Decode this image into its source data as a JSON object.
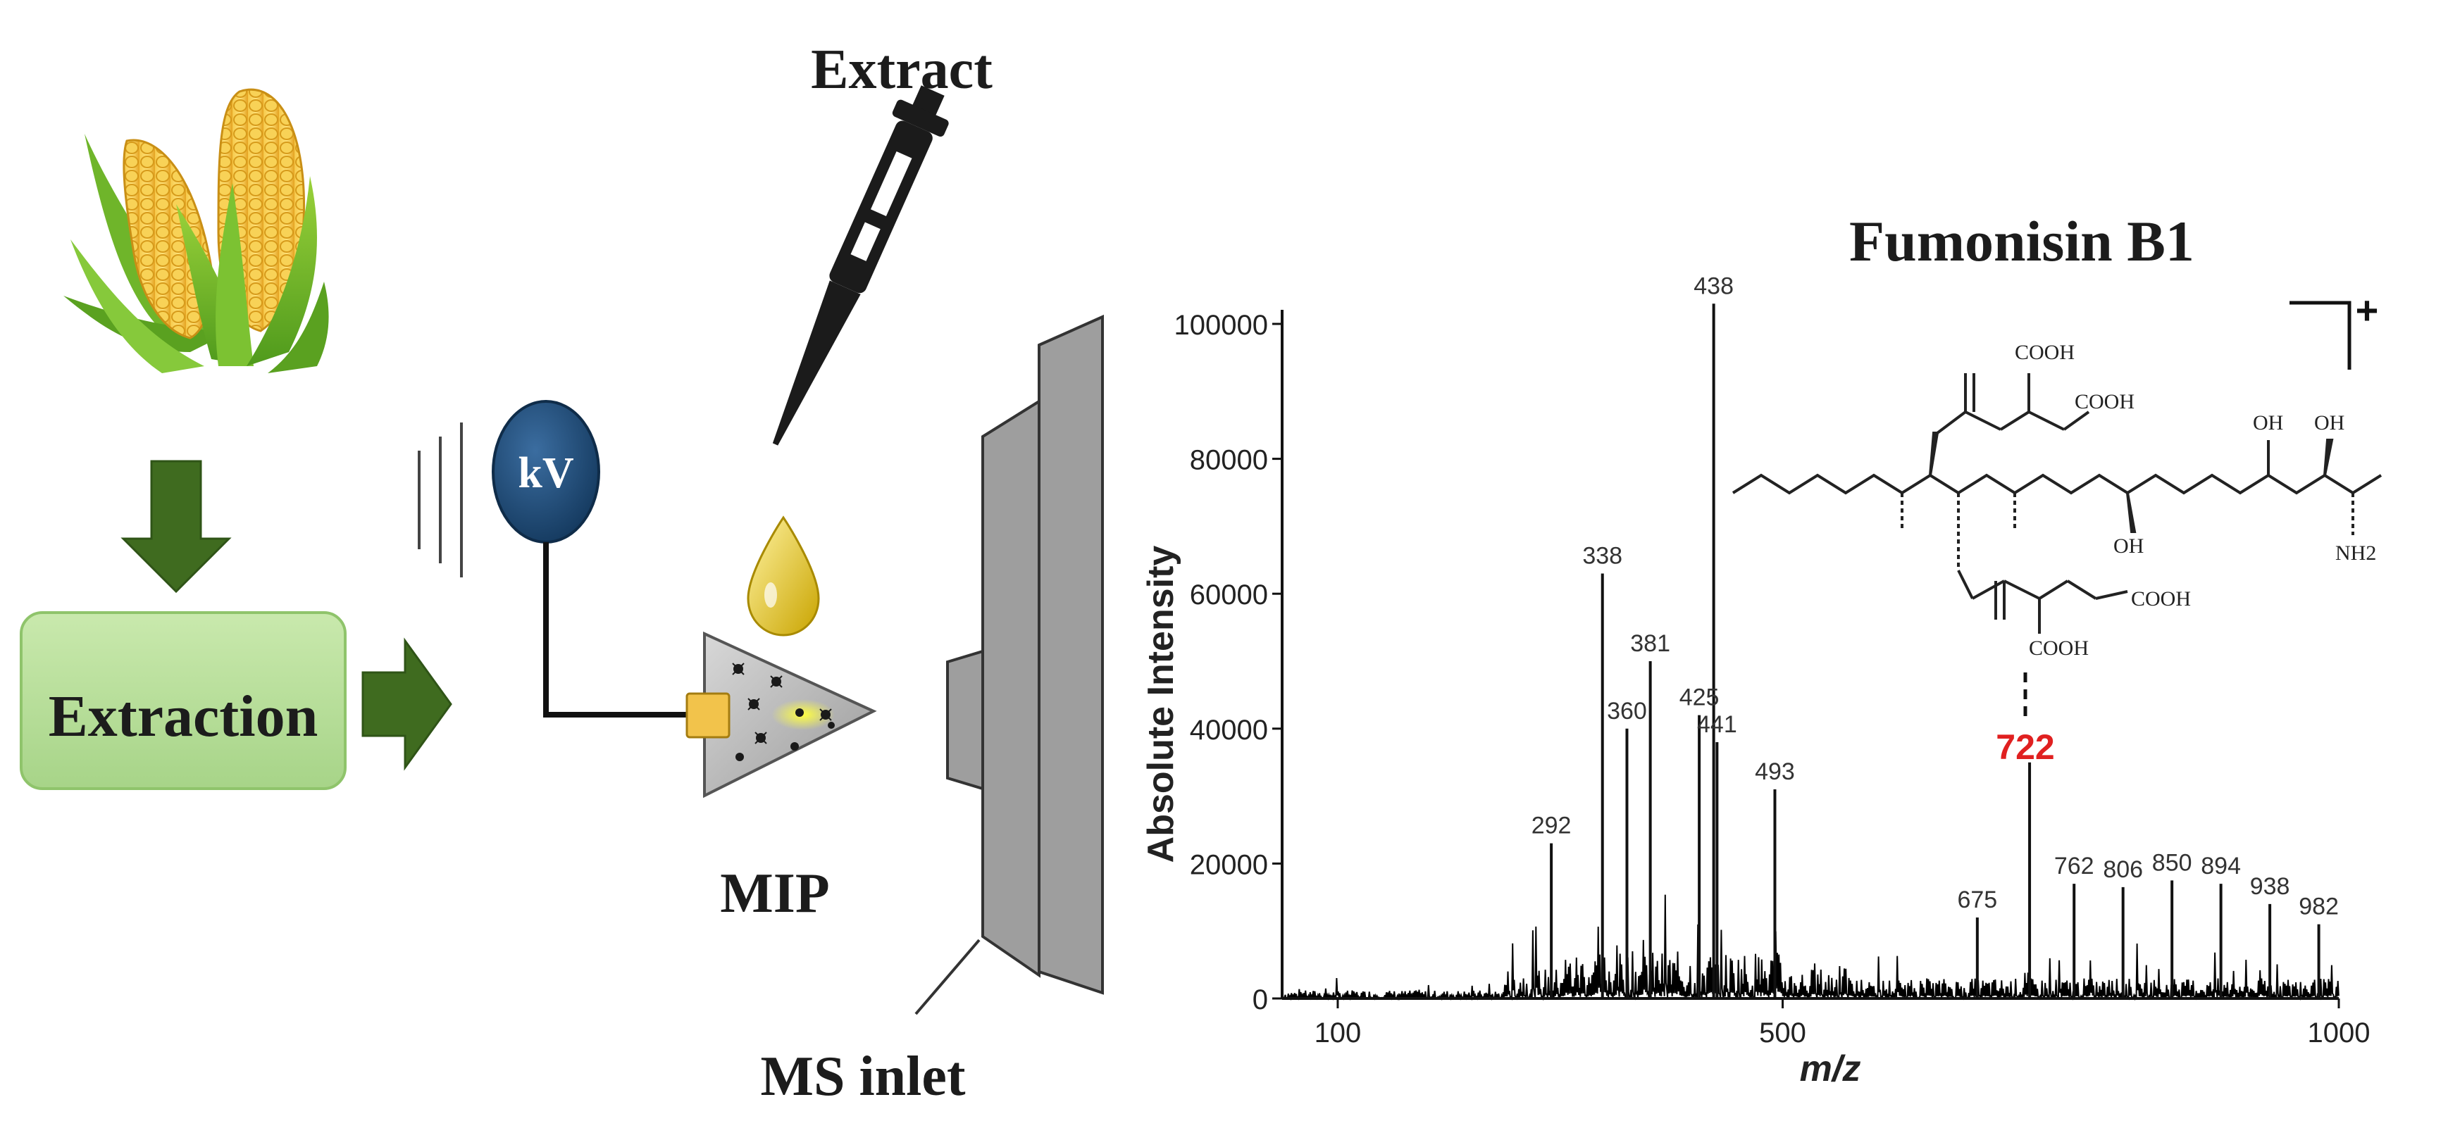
{
  "workflow": {
    "extraction_label": "Extraction",
    "voltage_label": "kV",
    "extract_label": "Extract",
    "mip_label": "MIP",
    "ms_inlet_label": "MS inlet"
  },
  "spectrum": {
    "compound_title": "Fumonisin B1",
    "charge_label": "+",
    "highlight_label": "722",
    "colors": {
      "highlight": "#e02020",
      "trace": "#000000"
    },
    "structure_labels": {
      "cooh_1": "COOH",
      "cooh_2": "COOH",
      "cooh_3": "COOH",
      "cooh_4": "COOH",
      "oh_1": "OH",
      "oh_2": "OH",
      "oh_3": "OH",
      "nh2": "NH2"
    }
  },
  "chart_data": {
    "type": "line",
    "title": "Fumonisin B1",
    "xlabel": "m/z",
    "ylabel": "Absolute Intensity",
    "xlim": [
      50,
      1000
    ],
    "ylim": [
      0,
      100000
    ],
    "xticks": [
      100,
      500,
      1000
    ],
    "yticks": [
      0,
      20000,
      40000,
      60000,
      80000,
      100000
    ],
    "grid": false,
    "peaks": [
      {
        "mz": 292,
        "intensity": 23000,
        "label": "292"
      },
      {
        "mz": 338,
        "intensity": 63000,
        "label": "338"
      },
      {
        "mz": 360,
        "intensity": 40000,
        "label": "360"
      },
      {
        "mz": 381,
        "intensity": 50000,
        "label": "381"
      },
      {
        "mz": 425,
        "intensity": 42000,
        "label": "425"
      },
      {
        "mz": 438,
        "intensity": 103000,
        "label": "438"
      },
      {
        "mz": 441,
        "intensity": 38000,
        "label": "441"
      },
      {
        "mz": 493,
        "intensity": 31000,
        "label": "493"
      },
      {
        "mz": 675,
        "intensity": 12000,
        "label": "675"
      },
      {
        "mz": 722,
        "intensity": 35000,
        "label": "722"
      },
      {
        "mz": 762,
        "intensity": 17000,
        "label": "762"
      },
      {
        "mz": 806,
        "intensity": 16500,
        "label": "806"
      },
      {
        "mz": 850,
        "intensity": 17500,
        "label": "850"
      },
      {
        "mz": 894,
        "intensity": 17000,
        "label": "894"
      },
      {
        "mz": 938,
        "intensity": 14000,
        "label": "938"
      },
      {
        "mz": 982,
        "intensity": 11000,
        "label": "982"
      }
    ]
  }
}
